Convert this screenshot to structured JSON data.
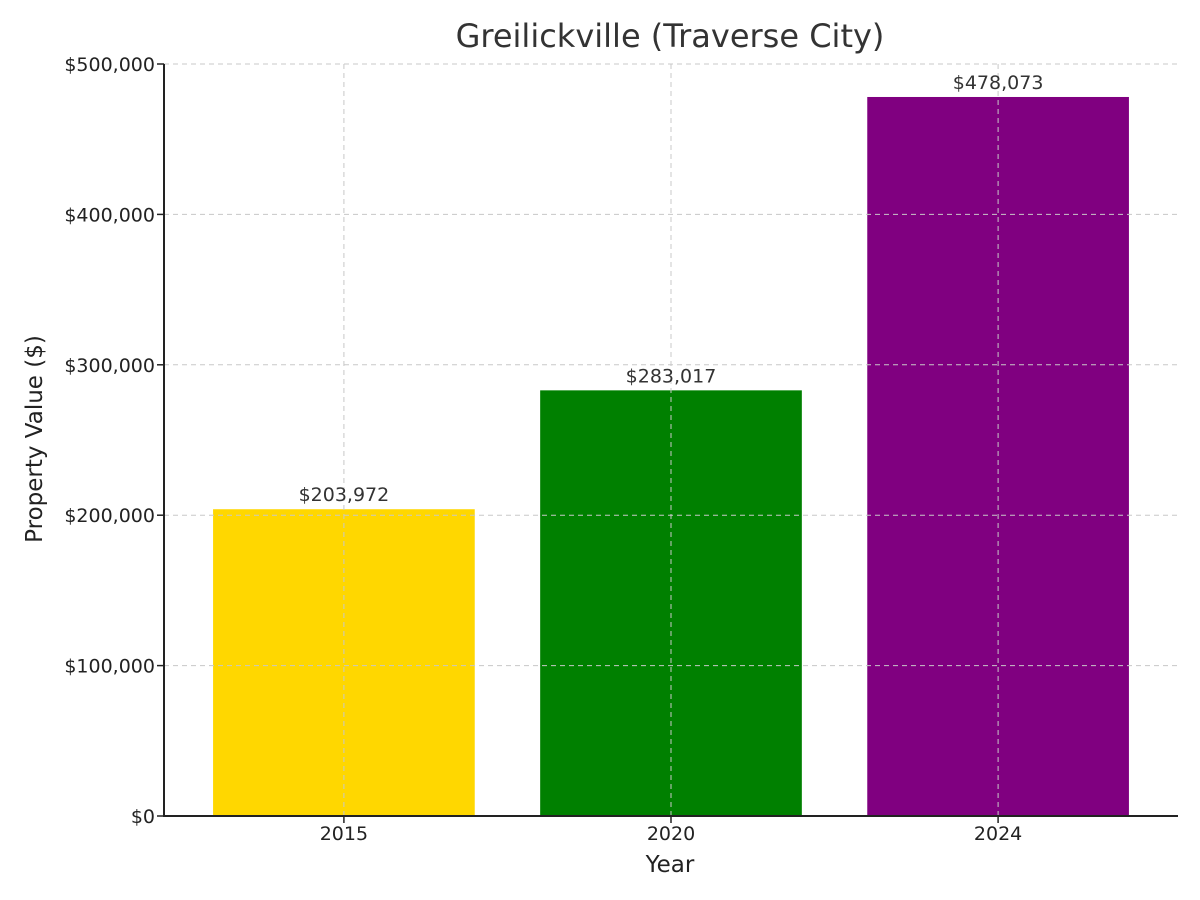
{
  "chart_data": {
    "type": "bar",
    "title": "Greilickville (Traverse City)",
    "xlabel": "Year",
    "ylabel": "Property Value ($)",
    "categories": [
      "2015",
      "2020",
      "2024"
    ],
    "values": [
      203972,
      283017,
      478073
    ],
    "value_labels": [
      "$203,972",
      "$283,017",
      "$478,073"
    ],
    "colors": [
      "#FFD700",
      "#008000",
      "#800080"
    ],
    "ylim": [
      0,
      500000
    ],
    "yticks": [
      0,
      100000,
      200000,
      300000,
      400000,
      500000
    ],
    "ytick_labels": [
      "$0",
      "$100,000",
      "$200,000",
      "$300,000",
      "$400,000",
      "$500,000"
    ],
    "grid": true,
    "legend": false
  }
}
